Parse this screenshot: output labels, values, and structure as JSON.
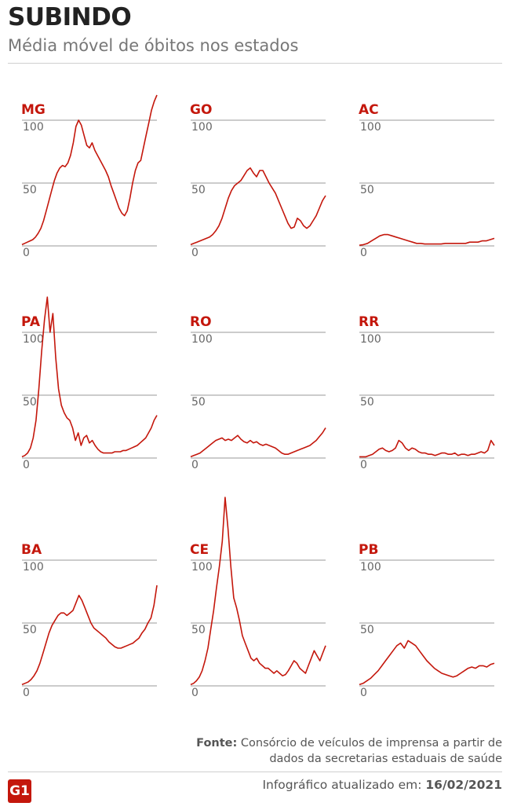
{
  "header": {
    "title": "SUBINDO",
    "subtitle": "Média móvel de óbitos nos estados"
  },
  "colors": {
    "line": "#c4170c",
    "label": "#c4170c",
    "grid": "#999999",
    "tick": "#666666"
  },
  "chart_data": [
    {
      "type": "line",
      "label": "MG",
      "yticks": [
        0,
        50,
        100
      ],
      "ylim": [
        0,
        100
      ],
      "values": [
        1,
        2,
        3,
        4,
        5,
        7,
        10,
        14,
        20,
        28,
        36,
        44,
        52,
        58,
        62,
        64,
        63,
        66,
        72,
        82,
        95,
        100,
        96,
        88,
        80,
        78,
        82,
        76,
        72,
        68,
        64,
        60,
        55,
        48,
        42,
        36,
        30,
        26,
        24,
        28,
        38,
        50,
        60,
        66,
        68,
        78,
        88,
        98,
        108,
        115,
        120
      ]
    },
    {
      "type": "line",
      "label": "GO",
      "yticks": [
        0,
        50,
        100
      ],
      "ylim": [
        0,
        100
      ],
      "values": [
        1,
        2,
        3,
        4,
        5,
        6,
        7,
        9,
        12,
        16,
        22,
        30,
        38,
        44,
        48,
        50,
        52,
        56,
        60,
        62,
        58,
        55,
        60,
        60,
        55,
        50,
        46,
        42,
        36,
        30,
        24,
        18,
        14,
        15,
        22,
        20,
        16,
        14,
        16,
        20,
        24,
        30,
        36,
        40
      ]
    },
    {
      "type": "line",
      "label": "AC",
      "yticks": [
        0,
        50,
        100
      ],
      "ylim": [
        0,
        100
      ],
      "values": [
        0.5,
        1,
        2,
        4,
        6,
        8,
        9,
        9,
        8,
        7,
        6,
        5,
        4,
        3,
        2,
        2,
        1.5,
        1.5,
        1.5,
        1.5,
        1.5,
        2,
        2,
        2,
        2,
        2,
        2,
        3,
        3,
        3,
        4,
        4,
        5,
        6
      ]
    },
    {
      "type": "line",
      "label": "PA",
      "yticks": [
        0,
        50,
        100
      ],
      "ylim": [
        0,
        100
      ],
      "values": [
        1,
        2,
        4,
        8,
        16,
        30,
        55,
        85,
        110,
        128,
        100,
        115,
        80,
        55,
        42,
        36,
        32,
        30,
        24,
        14,
        20,
        10,
        16,
        18,
        12,
        14,
        10,
        7,
        5,
        4,
        4,
        4,
        4,
        5,
        5,
        5,
        6,
        6,
        7,
        8,
        9,
        10,
        12,
        14,
        16,
        20,
        24,
        30,
        34
      ]
    },
    {
      "type": "line",
      "label": "RO",
      "yticks": [
        0,
        50,
        100
      ],
      "ylim": [
        0,
        100
      ],
      "values": [
        1,
        2,
        3,
        4,
        6,
        8,
        10,
        12,
        14,
        15,
        16,
        14,
        15,
        14,
        16,
        18,
        15,
        13,
        12,
        14,
        12,
        13,
        11,
        10,
        11,
        10,
        9,
        8,
        6,
        4,
        3,
        3,
        4,
        5,
        6,
        7,
        8,
        9,
        10,
        12,
        14,
        17,
        20,
        24
      ]
    },
    {
      "type": "line",
      "label": "RR",
      "yticks": [
        0,
        50,
        100
      ],
      "ylim": [
        0,
        100
      ],
      "values": [
        1,
        1,
        1,
        2,
        3,
        5,
        7,
        8,
        6,
        5,
        6,
        8,
        14,
        12,
        8,
        6,
        8,
        7,
        5,
        4,
        4,
        3,
        3,
        2,
        3,
        4,
        4,
        3,
        3,
        4,
        2,
        3,
        3,
        2,
        3,
        3,
        4,
        5,
        4,
        6,
        14,
        10
      ]
    },
    {
      "type": "line",
      "label": "BA",
      "yticks": [
        0,
        50,
        100
      ],
      "ylim": [
        0,
        100
      ],
      "values": [
        1,
        2,
        3,
        5,
        8,
        12,
        18,
        26,
        34,
        42,
        48,
        52,
        56,
        58,
        58,
        56,
        58,
        60,
        66,
        72,
        68,
        62,
        56,
        50,
        46,
        44,
        42,
        40,
        38,
        35,
        33,
        31,
        30,
        30,
        31,
        32,
        33,
        34,
        36,
        38,
        42,
        45,
        50,
        54,
        64,
        80
      ]
    },
    {
      "type": "line",
      "label": "CE",
      "yticks": [
        0,
        50,
        100
      ],
      "ylim": [
        0,
        100
      ],
      "values": [
        1,
        2,
        4,
        7,
        12,
        20,
        30,
        45,
        60,
        78,
        95,
        115,
        150,
        125,
        95,
        70,
        62,
        52,
        40,
        34,
        28,
        22,
        20,
        22,
        18,
        16,
        14,
        14,
        12,
        10,
        12,
        10,
        8,
        9,
        12,
        16,
        20,
        18,
        14,
        12,
        10,
        16,
        22,
        28,
        24,
        20,
        26,
        32
      ]
    },
    {
      "type": "line",
      "label": "PB",
      "yticks": [
        0,
        50,
        100
      ],
      "ylim": [
        0,
        100
      ],
      "values": [
        1,
        2,
        4,
        6,
        9,
        12,
        16,
        20,
        24,
        28,
        32,
        34,
        30,
        36,
        34,
        32,
        28,
        24,
        20,
        17,
        14,
        12,
        10,
        9,
        8,
        7,
        8,
        10,
        12,
        14,
        15,
        14,
        16,
        16,
        15,
        17,
        18
      ]
    }
  ],
  "footer": {
    "source_label": "Fonte:",
    "source_text": "Consórcio de veículos de imprensa a partir de dados da secretarias estaduais de saúde",
    "logo_text": "G1",
    "updated_label": "Infográfico atualizado em:",
    "updated_date": "16/02/2021"
  }
}
